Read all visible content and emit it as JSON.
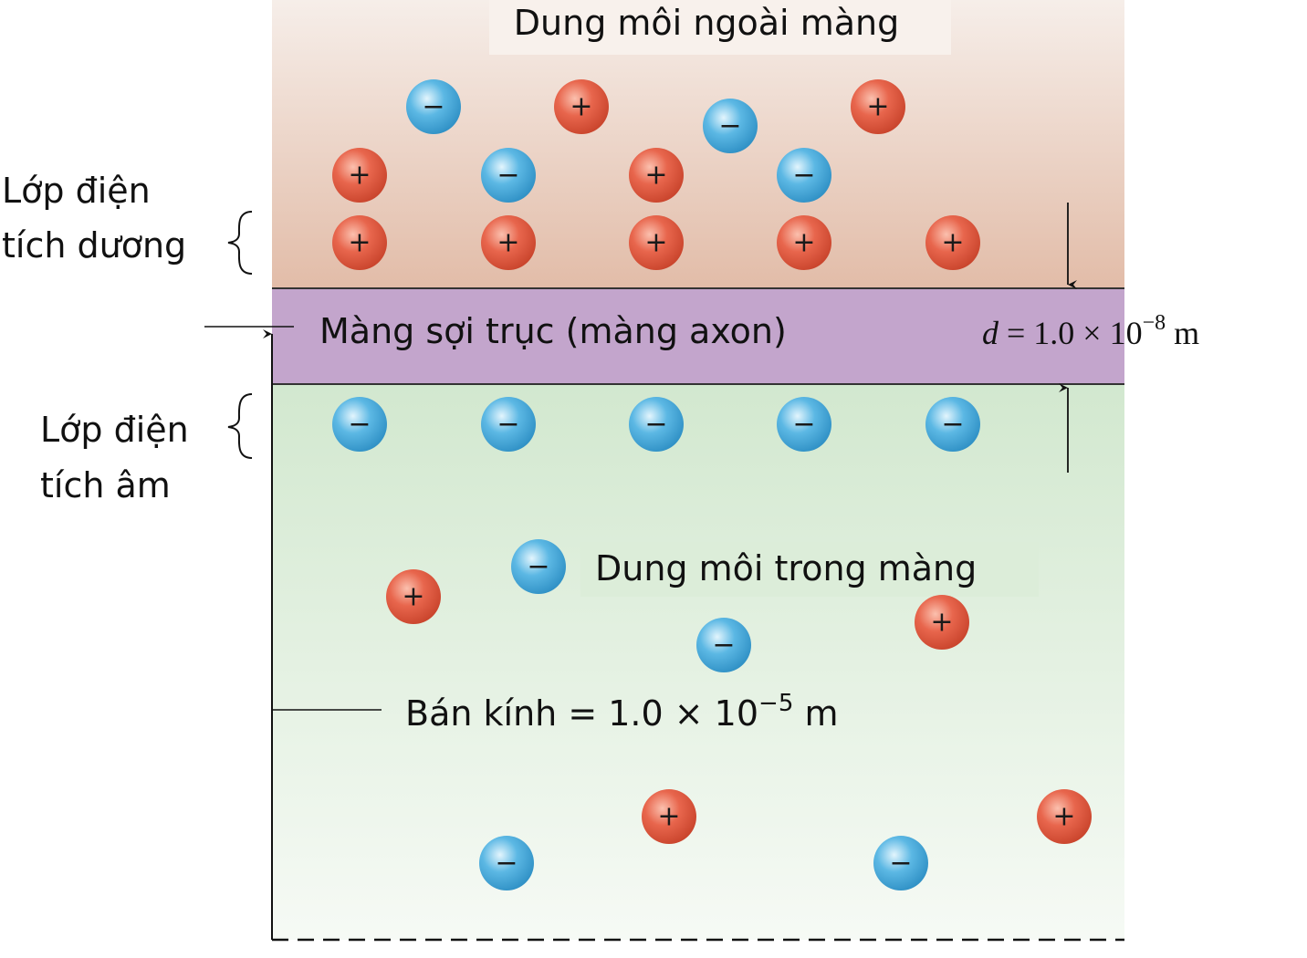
{
  "labels": {
    "outside_solvent": "Dung môi ngoài màng",
    "inside_solvent": "Dung môi trong màng",
    "membrane": "Màng sợi trục (màng axon)",
    "positive_layer_line1": "Lớp điện",
    "positive_layer_line2": "tích dương",
    "negative_layer_line1": "Lớp điện",
    "negative_layer_line2": "tích âm",
    "radius_prefix": "Bán kính = 1.0 × 10",
    "radius_exponent": "−5",
    "radius_unit": " m",
    "thickness_var": "d",
    "thickness_mid": " = 1.0 × 10",
    "thickness_exponent": "−8",
    "thickness_unit": " m"
  },
  "sign_glyphs": {
    "positive": "+",
    "negative": "−"
  },
  "colors": {
    "outside_top": "#f6eee9",
    "outside_bottom": "#e2bca8",
    "membrane": "#c3a5cc",
    "inside_top": "#d2e8cf",
    "inside_bottom": "#f6faf5",
    "positive_ion": "#e8664d",
    "negative_ion": "#5cb8e4"
  },
  "ions": [
    {
      "sign": "negative",
      "region": "outside"
    },
    {
      "sign": "positive",
      "region": "outside"
    },
    {
      "sign": "negative",
      "region": "outside"
    },
    {
      "sign": "positive",
      "region": "outside"
    },
    {
      "sign": "positive",
      "region": "outside"
    },
    {
      "sign": "negative",
      "region": "outside"
    },
    {
      "sign": "positive",
      "region": "outside"
    },
    {
      "sign": "negative",
      "region": "outside"
    },
    {
      "sign": "positive",
      "region": "positive-layer"
    },
    {
      "sign": "positive",
      "region": "positive-layer"
    },
    {
      "sign": "positive",
      "region": "positive-layer"
    },
    {
      "sign": "positive",
      "region": "positive-layer"
    },
    {
      "sign": "positive",
      "region": "positive-layer"
    },
    {
      "sign": "negative",
      "region": "negative-layer"
    },
    {
      "sign": "negative",
      "region": "negative-layer"
    },
    {
      "sign": "negative",
      "region": "negative-layer"
    },
    {
      "sign": "negative",
      "region": "negative-layer"
    },
    {
      "sign": "negative",
      "region": "negative-layer"
    },
    {
      "sign": "negative",
      "region": "inside"
    },
    {
      "sign": "positive",
      "region": "inside"
    },
    {
      "sign": "negative",
      "region": "inside"
    },
    {
      "sign": "positive",
      "region": "inside"
    },
    {
      "sign": "positive",
      "region": "inside"
    },
    {
      "sign": "positive",
      "region": "inside"
    },
    {
      "sign": "negative",
      "region": "inside"
    },
    {
      "sign": "negative",
      "region": "inside"
    }
  ]
}
